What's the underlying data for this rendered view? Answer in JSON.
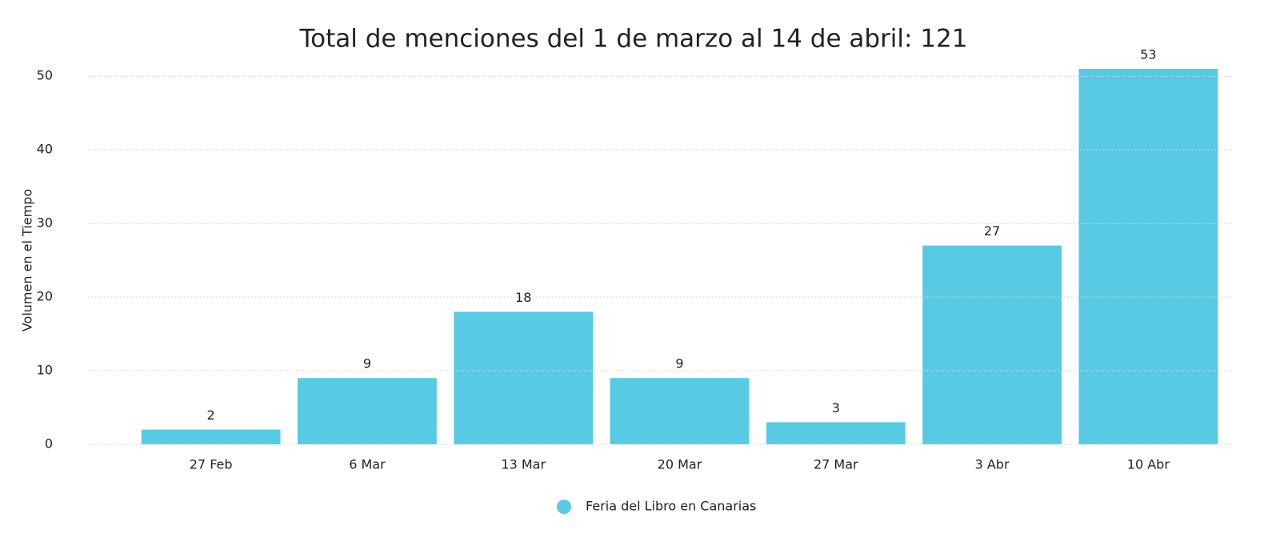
{
  "chart_data": {
    "type": "bar",
    "title": "Total de menciones del 1 de marzo al 14 de abril: 121",
    "ylabel": "Volumen en el Tiempo",
    "categories": [
      "27 Feb",
      "6 Mar",
      "13 Mar",
      "20 Mar",
      "27 Mar",
      "3  Abr",
      "10 Abr"
    ],
    "series": [
      {
        "name": "Feria del Libro en Canarias",
        "color": "#56cbe3",
        "values": [
          2,
          9,
          18,
          9,
          3,
          27,
          53
        ]
      }
    ],
    "ylim": [
      0,
      51
    ],
    "yticks": [
      0,
      10,
      20,
      30,
      40,
      50
    ],
    "grid": true,
    "legend": "bottom"
  }
}
